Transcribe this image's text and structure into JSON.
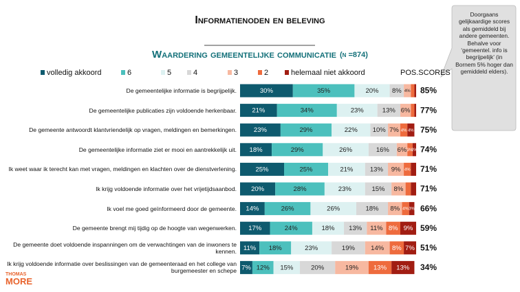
{
  "title": "Informatienoden en beleving",
  "note": "Doorgaans gelijkaardige scores als gemiddeld bij andere gemeenten. Behalve voor ‘gemeentel. info is begrijpelijk’ (in Bornem 5% hoger dan gemiddeld elders).",
  "logo": {
    "top": "THOMAS",
    "bottom": "MORE"
  },
  "chart_data": {
    "type": "stacked_bar",
    "orientation": "horizontal",
    "title": "Waardering gemeentelijke communicatie",
    "sample_size": "(n =874)",
    "xlim": [
      0,
      100
    ],
    "categories": [
      "De gemeentelijke informatie is begrijpelijk.",
      "De gemeentelijke publicaties zijn voldoende herkenbaar.",
      "De gemeente antwoordt klantvriendelijk op vragen, meldingen en bemerkingen.",
      "De gemeentelijke informatie ziet er mooi en aantrekkelijk uit.",
      "Ik weet waar ik terecht kan met vragen, meldingen en klachten over de dienstverlening.",
      "Ik krijg voldoende informatie over het vrijetijdsaanbod.",
      "Ik voel me goed geïnformeerd door de gemeente.",
      "De gemeente brengt mij tijdig op de hoogte van wegenwerken.",
      "De gemeente doet voldoende inspanningen om de verwachtingen van de inwoners te kennen.",
      "Ik krijg voldoende informatie over beslissingen van de gemeenteraad en het college van burgemeester en schepe"
    ],
    "series": [
      {
        "name": "volledig akkoord",
        "color": "#0e5a6e",
        "values": [
          30,
          21,
          23,
          18,
          25,
          20,
          14,
          17,
          11,
          7
        ],
        "value_labels": [
          "30%",
          "21%",
          "23%",
          "18%",
          "25%",
          "20%",
          "14%",
          "17%",
          "11%",
          "7%"
        ]
      },
      {
        "name": "6",
        "color": "#4cc0bd",
        "values": [
          35,
          34,
          29,
          29,
          25,
          28,
          26,
          24,
          18,
          12
        ],
        "value_labels": [
          "35%",
          "34%",
          "29%",
          "29%",
          "25%",
          "28%",
          "26%",
          "24%",
          "18%",
          "12%"
        ]
      },
      {
        "name": "5",
        "color": "#ddf1f1",
        "values": [
          20,
          23,
          22,
          26,
          21,
          23,
          26,
          18,
          23,
          15
        ],
        "value_labels": [
          "20%",
          "23%",
          "22%",
          "26%",
          "21%",
          "23%",
          "26%",
          "18%",
          "23%",
          "15%"
        ]
      },
      {
        "name": "4",
        "color": "#d8d8d8",
        "values": [
          8,
          13,
          10,
          16,
          13,
          15,
          18,
          13,
          19,
          20
        ],
        "value_labels": [
          "8%",
          "13%",
          "10%",
          "16%",
          "13%",
          "15%",
          "18%",
          "13%",
          "19%",
          "20%"
        ]
      },
      {
        "name": "3",
        "color": "#f7b8a0",
        "values": [
          4,
          6,
          7,
          6,
          9,
          8,
          8,
          11,
          14,
          19
        ],
        "value_labels": [
          "4%",
          "6%",
          "7%",
          "6%",
          "9%",
          "8%",
          "8%",
          "11%",
          "14%",
          "19%"
        ]
      },
      {
        "name": "2",
        "color": "#ee6b3d",
        "values": [
          2,
          2,
          4,
          3,
          4,
          3,
          4,
          8,
          8,
          13
        ],
        "value_labels": [
          null,
          null,
          "4%",
          "3%",
          "4%",
          null,
          "4%",
          "8%",
          "8%",
          "13%"
        ]
      },
      {
        "name": "helemaal niet akkoord",
        "color": "#a11d12",
        "values": [
          1,
          1,
          4,
          2,
          3,
          3,
          3,
          9,
          7,
          13
        ],
        "value_labels": [
          null,
          null,
          "4%",
          "2%",
          null,
          null,
          "3%",
          "9%",
          "7%",
          "13%"
        ]
      }
    ],
    "pos_scores": {
      "header": "POS.SCORES",
      "values": [
        85,
        77,
        75,
        74,
        71,
        71,
        66,
        59,
        51,
        34
      ],
      "value_labels": [
        "85%",
        "77%",
        "75%",
        "74%",
        "71%",
        "71%",
        "66%",
        "59%",
        "51%",
        "34%"
      ]
    }
  }
}
